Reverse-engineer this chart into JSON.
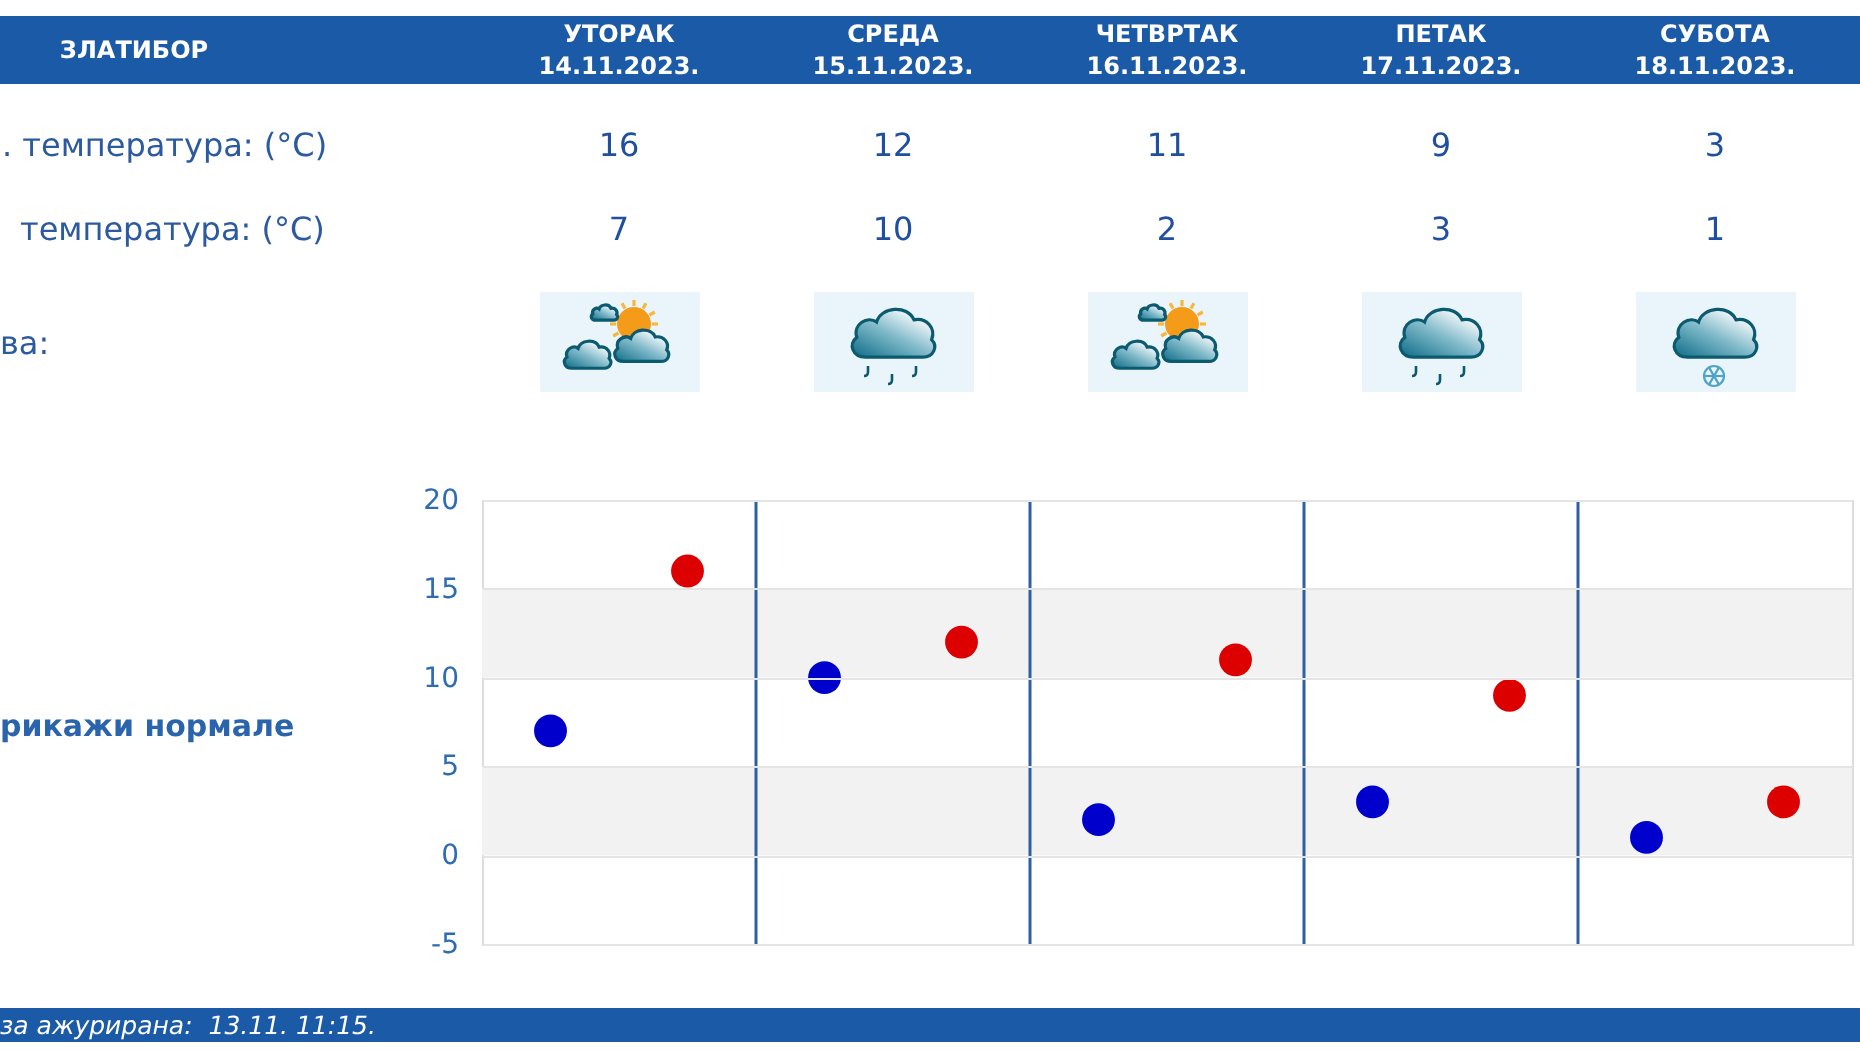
{
  "chart_data": {
    "type": "scatter",
    "title": "ЗЛАТИБОР",
    "categories": [
      null,
      null,
      null,
      null,
      null
    ],
    "series": [
      {
        "color": "#0000cc",
        "values": [
          7,
          10,
          2,
          3,
          1
        ]
      },
      {
        "color": "#dd0000",
        "values": [
          16,
          12,
          11,
          9,
          3
        ]
      }
    ],
    "ylim": [
      -5,
      20
    ],
    "yticks": [
      -5,
      0,
      5,
      10,
      15,
      20
    ],
    "grid": true,
    "marker": "circle",
    "data_labels": true,
    "bands": [
      {
        "axis": "y",
        "from": 0,
        "to": 5,
        "color": "#f2f2f2"
      },
      {
        "axis": "y",
        "from": 10,
        "to": 15,
        "color": "#f2f2f2"
      }
    ],
    "annotations": [
      "УТОРАК\n14.11.2023.",
      "СРЕДА\n15.11.2023.",
      "ЧЕТВРТАК\n16.11.2023.",
      "ПЕТАК\n17.11.2023.",
      "СУБОТА\n18.11.2023.",
      ". температура: (°C)",
      "температура: (°C)",
      "ва:",
      "рикажи нормале",
      "за ажурирана:  13.11. 11:15."
    ]
  }
}
